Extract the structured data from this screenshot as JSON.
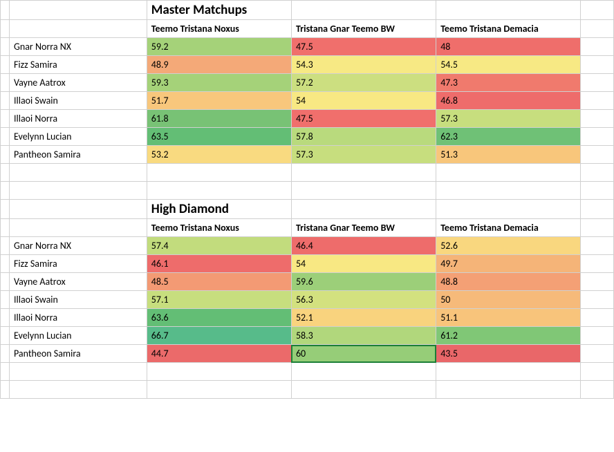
{
  "tables": [
    {
      "title": "Master Matchups",
      "columns": [
        "Teemo Tristana Noxus",
        "Tristana Gnar Teemo BW",
        "Teemo Tristana Demacia"
      ],
      "rows": [
        {
          "label": "Gnar Norra NX",
          "vals": [
            59.2,
            47.5,
            48
          ],
          "colors": [
            "#a5d279",
            "#f06f6c",
            "#ef6e6b"
          ]
        },
        {
          "label": "Fizz Samira",
          "vals": [
            48.9,
            54.3,
            54.5
          ],
          "colors": [
            "#f4a978",
            "#f7e984",
            "#f7e984"
          ]
        },
        {
          "label": "Vayne Aatrox",
          "vals": [
            59.3,
            57.2,
            47.3
          ],
          "colors": [
            "#a5d279",
            "#ccdf80",
            "#f07a6d"
          ]
        },
        {
          "label": "Illaoi Swain",
          "vals": [
            51.7,
            54,
            46.8
          ],
          "colors": [
            "#f8c77c",
            "#f8e883",
            "#ee6c6b"
          ]
        },
        {
          "label": "Illaoi Norra",
          "vals": [
            61.8,
            47.5,
            57.3
          ],
          "colors": [
            "#78c275",
            "#f06f6c",
            "#c7de7e"
          ]
        },
        {
          "label": "Evelynn Lucian",
          "vals": [
            63.5,
            57.8,
            62.3
          ],
          "colors": [
            "#63be75",
            "#b9da7d",
            "#6fc176"
          ]
        },
        {
          "label": "Pantheon Samira",
          "vals": [
            53.2,
            57.3,
            51.3
          ],
          "colors": [
            "#f9da80",
            "#c7de7e",
            "#f8c67b"
          ]
        }
      ]
    },
    {
      "title": "High Diamond",
      "columns": [
        "Teemo Tristana Noxus",
        "Tristana Gnar Teemo BW",
        "Teemo Tristana Demacia"
      ],
      "rows": [
        {
          "label": "Gnar Norra NX",
          "vals": [
            57.4,
            46.4,
            52.6
          ],
          "colors": [
            "#c2dc7d",
            "#ee6c6b",
            "#f9d77f"
          ]
        },
        {
          "label": "Fizz Samira",
          "vals": [
            46.1,
            54,
            49.7
          ],
          "colors": [
            "#ee6c6b",
            "#f8e883",
            "#f5b478"
          ]
        },
        {
          "label": "Vayne Aatrox",
          "vals": [
            48.5,
            59.6,
            48.8
          ],
          "colors": [
            "#f39a74",
            "#9ccf79",
            "#f4a075"
          ]
        },
        {
          "label": "Illaoi Swain",
          "vals": [
            57.1,
            56.3,
            50
          ],
          "colors": [
            "#c7de7e",
            "#d3e17f",
            "#f6ba7a"
          ]
        },
        {
          "label": "Illaoi Norra",
          "vals": [
            63.6,
            52.1,
            51.1
          ],
          "colors": [
            "#63be75",
            "#f9d37e",
            "#f8c47b"
          ]
        },
        {
          "label": "Evelynn Lucian",
          "vals": [
            66.7,
            58.3,
            61.2
          ],
          "colors": [
            "#57bb8a",
            "#b1d77c",
            "#80c776"
          ]
        },
        {
          "label": "Pantheon Samira",
          "vals": [
            44.7,
            60,
            43.5
          ],
          "colors": [
            "#eb6a6a",
            "#96cd78",
            "#e96769"
          ],
          "selected": 1
        }
      ]
    }
  ],
  "font_family": "Calibri, Arial, sans-serif",
  "grid_color": "#d0d0d0",
  "background": "#ffffff"
}
